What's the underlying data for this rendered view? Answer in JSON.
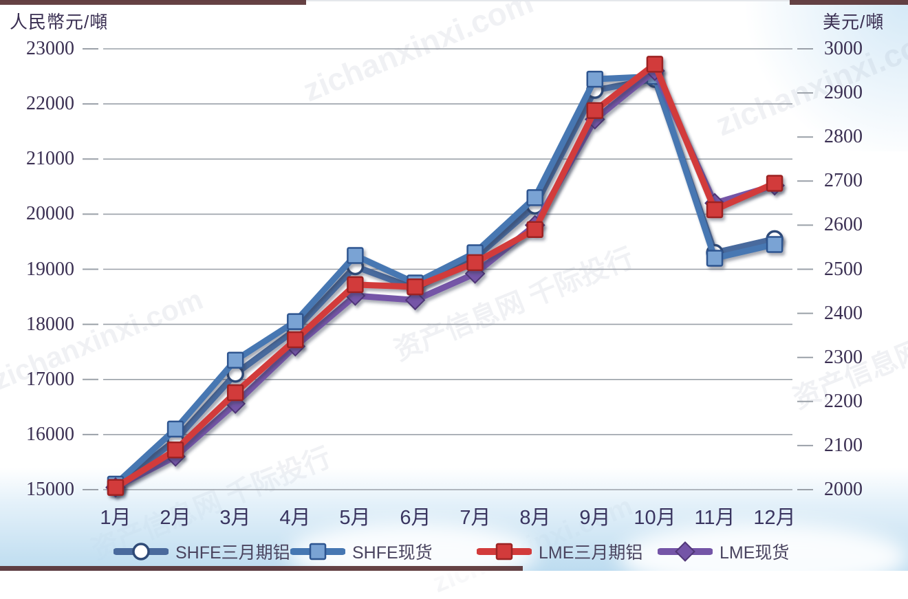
{
  "watermark": {
    "domain": "zichanxinxi.com",
    "brand": "资产信息网 千际投行"
  },
  "chart_data": {
    "type": "line",
    "title": "",
    "grid": true,
    "legend_position": "bottom",
    "categories": [
      "1月",
      "2月",
      "3月",
      "4月",
      "5月",
      "6月",
      "7月",
      "8月",
      "9月",
      "10月",
      "11月",
      "12月"
    ],
    "left_axis": {
      "title": "人民幣元/噸",
      "min": 15000,
      "max": 23000,
      "step": 1000,
      "ticks": [
        23000,
        22000,
        21000,
        20000,
        19000,
        18000,
        17000,
        16000,
        15000
      ]
    },
    "right_axis": {
      "title": "美元/噸",
      "min": 2000,
      "max": 3000,
      "step": 100,
      "ticks": [
        3000,
        2900,
        2800,
        2700,
        2600,
        2500,
        2400,
        2300,
        2200,
        2100,
        2000
      ]
    },
    "series": [
      {
        "name": "SHFE三月期铝",
        "axis": "left",
        "marker": "circle",
        "z": 1,
        "color": "#4a6a9d",
        "marker_fill": "#ffffff",
        "marker_stroke": "#2e4a77",
        "values": [
          15050,
          15900,
          17100,
          17900,
          19050,
          18650,
          19200,
          20150,
          22250,
          22450,
          19300,
          19550
        ]
      },
      {
        "name": "SHFE现货",
        "axis": "left",
        "marker": "square",
        "z": 2,
        "color": "#4677b2",
        "marker_fill": "#7aa3d4",
        "marker_stroke": "#2d5590",
        "values": [
          15100,
          16100,
          17350,
          18050,
          19250,
          18750,
          19300,
          20300,
          22450,
          22500,
          19200,
          19450
        ]
      },
      {
        "name": "LME三月期铝",
        "axis": "right",
        "marker": "square",
        "z": 4,
        "color": "#d23b3b",
        "marker_fill": "#d23b3b",
        "marker_stroke": "#9c2424",
        "values": [
          2005,
          2090,
          2220,
          2340,
          2465,
          2460,
          2515,
          2590,
          2860,
          2965,
          2635,
          2695
        ]
      },
      {
        "name": "LME现货",
        "axis": "right",
        "marker": "diamond",
        "z": 3,
        "color": "#7455a7",
        "marker_fill": "#7455a7",
        "marker_stroke": "#503677",
        "values": [
          2005,
          2075,
          2195,
          2325,
          2440,
          2430,
          2490,
          2600,
          2840,
          2950,
          2650,
          2690
        ]
      }
    ]
  }
}
